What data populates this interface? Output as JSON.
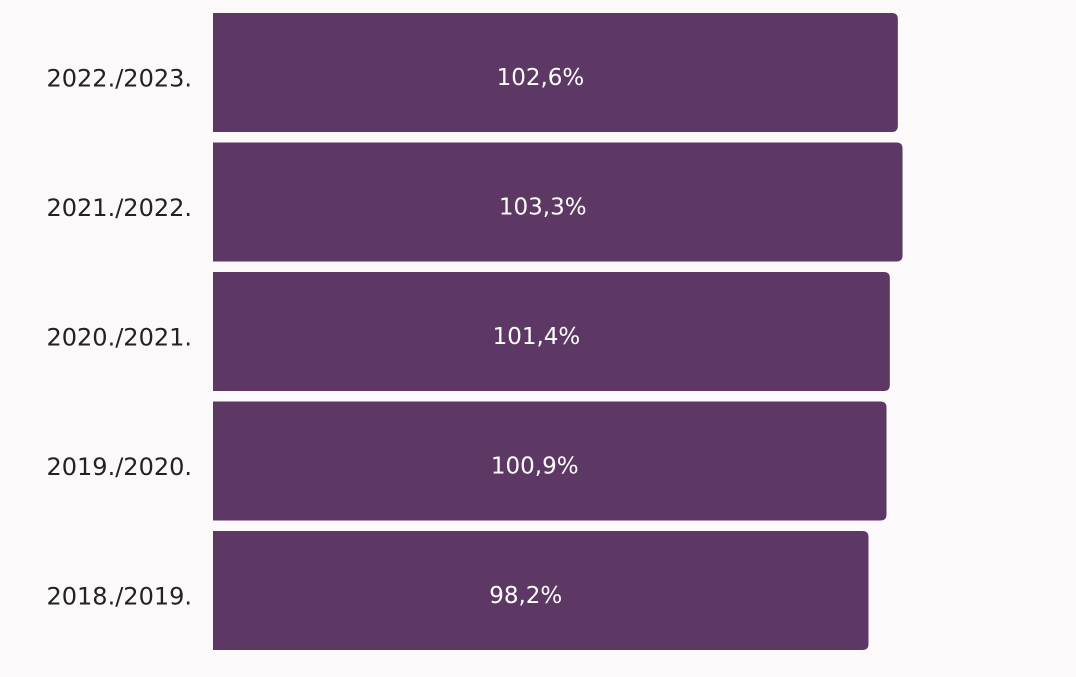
{
  "chart_data": {
    "type": "bar",
    "orientation": "horizontal",
    "categories": [
      "2022./2023.",
      "2021./2022.",
      "2020./2021.",
      "2019./2020.",
      "2018./2019."
    ],
    "values": [
      102.6,
      103.3,
      101.4,
      100.9,
      98.2
    ],
    "value_labels": [
      "102,6%",
      "103,3%",
      "101,4%",
      "100,9%",
      "98,2%"
    ],
    "color": "#5e3864",
    "xlim": [
      0,
      120
    ]
  }
}
